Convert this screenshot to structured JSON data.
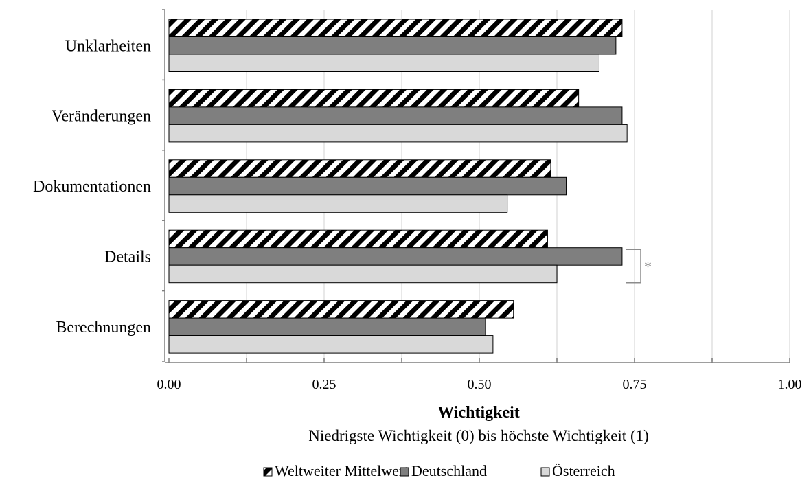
{
  "chart_data": {
    "type": "bar",
    "orientation": "horizontal",
    "categories": [
      "Unklarheiten",
      "Veränderungen",
      "Dokumentationen",
      "Details",
      "Berechnungen"
    ],
    "series": [
      {
        "name": "Weltweiter Mittelwert",
        "values": [
          0.73,
          0.66,
          0.615,
          0.61,
          0.555
        ],
        "pattern": "diagonal-hatch"
      },
      {
        "name": "Deutschland",
        "values": [
          0.72,
          0.73,
          0.64,
          0.73,
          0.51
        ],
        "color": "#7f7f7f"
      },
      {
        "name": "Österreich",
        "values": [
          0.693,
          0.738,
          0.545,
          0.625,
          0.522
        ],
        "color": "#d9d9d9"
      }
    ],
    "xlabel": "Wichtigkeit",
    "xlabel_sub": "Niedrigste Wichtigkeit (0) bis höchste Wichtigkeit (1)",
    "xlim": [
      0,
      1
    ],
    "xticks": [
      0,
      0.25,
      0.5,
      0.75,
      1
    ],
    "xtick_labels": [
      "0.00",
      "0.25",
      "0.50",
      "0.75",
      "1.00"
    ],
    "grid": true,
    "legend_position": "bottom",
    "annotations": [
      {
        "category": "Details",
        "text": "*"
      }
    ]
  }
}
